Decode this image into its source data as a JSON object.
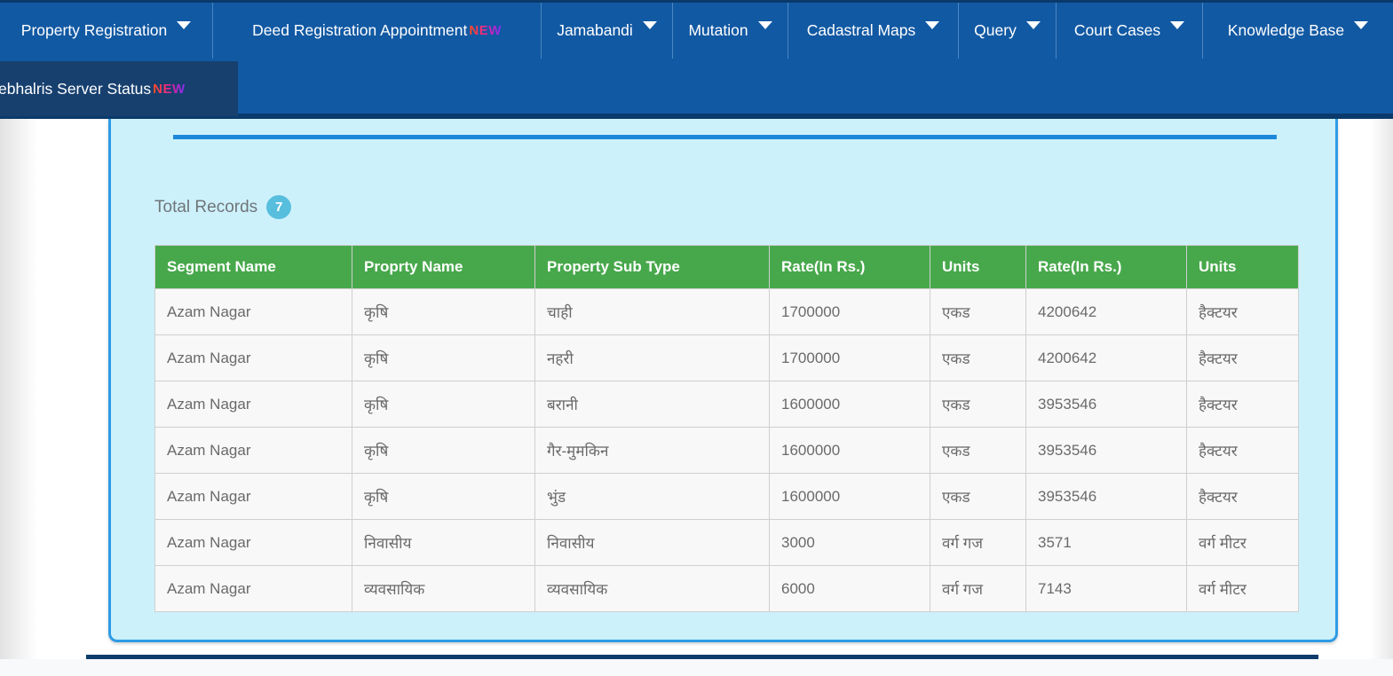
{
  "nav": {
    "items": [
      {
        "label": "Property Registration",
        "has_dropdown": true,
        "badge": ""
      },
      {
        "label": "Deed Registration Appointment",
        "has_dropdown": false,
        "badge": "NEW"
      },
      {
        "label": "Jamabandi",
        "has_dropdown": true,
        "badge": ""
      },
      {
        "label": "Mutation",
        "has_dropdown": true,
        "badge": ""
      },
      {
        "label": "Cadastral Maps",
        "has_dropdown": true,
        "badge": ""
      },
      {
        "label": "Query",
        "has_dropdown": true,
        "badge": ""
      },
      {
        "label": "Court Cases",
        "has_dropdown": true,
        "badge": ""
      },
      {
        "label": "Knowledge Base",
        "has_dropdown": true,
        "badge": ""
      }
    ],
    "submenu_item": {
      "label": "ebhalris Server Status",
      "badge": "NEW"
    },
    "colors": {
      "bar": "#1259a3",
      "dark_border": "#0a3a6b",
      "submenu_bg": "#17406f"
    }
  },
  "panel": {
    "total_records_label": "Total Records",
    "total_records_count": "7",
    "accent_color": "#1d87da",
    "background_color": "#cdf1fb",
    "border_color": "#2e9be5"
  },
  "table": {
    "header_bg": "#47a84b",
    "headers": [
      "Segment Name",
      "Proprty Name",
      "Property Sub Type",
      "Rate(In Rs.)",
      "Units",
      "Rate(In Rs.)",
      "Units"
    ],
    "rows": [
      [
        "Azam Nagar",
        "कृषि",
        "चाही",
        "1700000",
        "एकड",
        "4200642",
        "हैक्टयर"
      ],
      [
        "Azam Nagar",
        "कृषि",
        "नहरी",
        "1700000",
        "एकड",
        "4200642",
        "हैक्टयर"
      ],
      [
        "Azam Nagar",
        "कृषि",
        "बरानी",
        "1600000",
        "एकड",
        "3953546",
        "हैक्टयर"
      ],
      [
        "Azam Nagar",
        "कृषि",
        "गैर-मुमकिन",
        "1600000",
        "एकड",
        "3953546",
        "हैक्टयर"
      ],
      [
        "Azam Nagar",
        "कृषि",
        "भुंड",
        "1600000",
        "एकड",
        "3953546",
        "हैक्टयर"
      ],
      [
        "Azam Nagar",
        "निवासीय",
        "निवासीय",
        "3000",
        "वर्ग गज",
        "3571",
        "वर्ग मीटर"
      ],
      [
        "Azam Nagar",
        "व्यवसायिक",
        "व्यवसायिक",
        "6000",
        "वर्ग गज",
        "7143",
        "वर्ग मीटर"
      ]
    ]
  }
}
